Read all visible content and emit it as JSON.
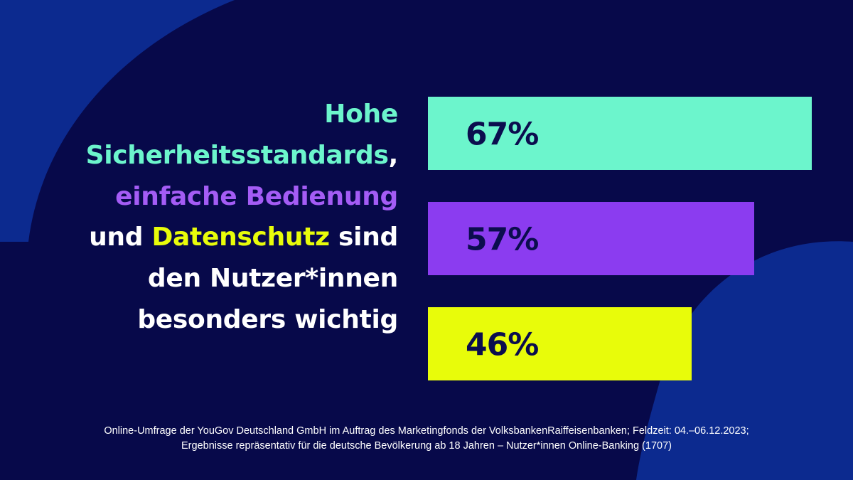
{
  "colors": {
    "background": "#07094a",
    "arc": "#0c2a8f",
    "text": "#ffffff",
    "accent_teal": "#6cf5cc",
    "accent_purple": "#8b3cf0",
    "accent_yellow": "#e8fc0a",
    "bar_text": "#0b0d4e"
  },
  "headline": {
    "line1": "Hohe",
    "line2_highlight": "Sicherheitsstandards",
    "line2_rest": ",",
    "line3": "einfache Bedienung",
    "line4_start": "und ",
    "line4_highlight": "Datenschutz",
    "line4_end": " sind",
    "line5": "den Nutzer*innen",
    "line6": "besonders wichtig"
  },
  "chart_data": {
    "type": "bar",
    "orientation": "horizontal",
    "categories": [
      "Hohe Sicherheitsstandards",
      "einfache Bedienung",
      "Datenschutz"
    ],
    "values": [
      67,
      57,
      46
    ],
    "labels": [
      "67%",
      "57%",
      "46%"
    ],
    "colors": [
      "#6cf5cc",
      "#8b3cf0",
      "#e8fc0a"
    ],
    "xlim": [
      0,
      67
    ],
    "grid": false
  },
  "footnote": {
    "line1": "Online-Umfrage der YouGov Deutschland GmbH im Auftrag des Marketingfonds der VolksbankenRaiffeisenbanken; Feldzeit: 04.–06.12.2023;",
    "line2": "Ergebnisse repräsentativ für die deutsche Bevölkerung ab 18 Jahren – Nutzer*innen Online-Banking (1707)"
  }
}
